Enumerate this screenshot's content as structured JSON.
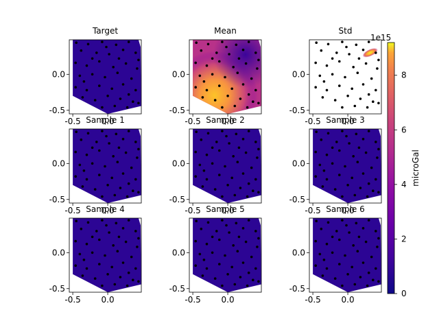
{
  "chart_data": {
    "type": "contour-grid",
    "colormap": "plasma",
    "scatter_color": "#000000",
    "xticks": [
      -0.5,
      0.0
    ],
    "yticks": [
      0.0,
      -0.5
    ],
    "xlim": [
      -0.55,
      0.48
    ],
    "ylim": [
      -0.55,
      0.48
    ],
    "region": [
      [
        -0.5,
        0.48
      ],
      [
        0.44,
        0.48
      ],
      [
        0.47,
        0.38
      ],
      [
        0.48,
        -0.44
      ],
      [
        0.0,
        -0.55
      ],
      [
        -0.5,
        -0.3
      ]
    ],
    "points": [
      [
        -0.45,
        0.44
      ],
      [
        -0.28,
        0.42
      ],
      [
        -0.08,
        0.45
      ],
      [
        0.12,
        0.41
      ],
      [
        0.3,
        0.45
      ],
      [
        -0.38,
        0.33
      ],
      [
        -0.16,
        0.3
      ],
      [
        0.02,
        0.28
      ],
      [
        0.22,
        0.34
      ],
      [
        0.4,
        0.3
      ],
      [
        -0.46,
        0.16
      ],
      [
        -0.3,
        0.12
      ],
      [
        -0.12,
        0.18
      ],
      [
        0.08,
        0.1
      ],
      [
        0.26,
        0.15
      ],
      [
        0.42,
        0.08
      ],
      [
        -0.4,
        -0.02
      ],
      [
        -0.22,
        0.0
      ],
      [
        -0.04,
        -0.04
      ],
      [
        0.14,
        0.02
      ],
      [
        0.34,
        -0.06
      ],
      [
        -0.46,
        -0.18
      ],
      [
        -0.3,
        -0.22
      ],
      [
        -0.12,
        -0.16
      ],
      [
        0.06,
        -0.2
      ],
      [
        0.22,
        -0.14
      ],
      [
        0.4,
        -0.22
      ],
      [
        -0.36,
        -0.32
      ],
      [
        -0.18,
        -0.36
      ],
      [
        0.0,
        -0.3
      ],
      [
        0.18,
        -0.34
      ],
      [
        0.36,
        -0.38
      ],
      [
        -0.08,
        -0.46
      ],
      [
        0.1,
        -0.44
      ],
      [
        0.28,
        -0.46
      ],
      [
        -0.22,
        0.22
      ],
      [
        0.3,
        -0.28
      ],
      [
        -0.02,
        0.38
      ],
      [
        0.16,
        0.22
      ],
      [
        -0.34,
        -0.1
      ],
      [
        0.44,
        0.2
      ],
      [
        0.44,
        -0.4
      ]
    ],
    "std_hotspot": [
      0.32,
      0.3
    ],
    "panels": [
      {
        "title": "Target",
        "kind": "uniform"
      },
      {
        "title": "Mean",
        "kind": "mean"
      },
      {
        "title": "Std",
        "kind": "std"
      },
      {
        "title": "Sample 1",
        "kind": "uniform"
      },
      {
        "title": "Sample 2",
        "kind": "uniform"
      },
      {
        "title": "Sample 3",
        "kind": "uniform"
      },
      {
        "title": "Sample 4",
        "kind": "uniform"
      },
      {
        "title": "Sample 5",
        "kind": "uniform"
      },
      {
        "title": "Sample 6",
        "kind": "uniform"
      }
    ],
    "colorbar": {
      "label": "microGal",
      "offset_text": "1e15",
      "range": [
        0,
        9.2
      ],
      "ticks": [
        0,
        2,
        4,
        6,
        8
      ]
    }
  }
}
